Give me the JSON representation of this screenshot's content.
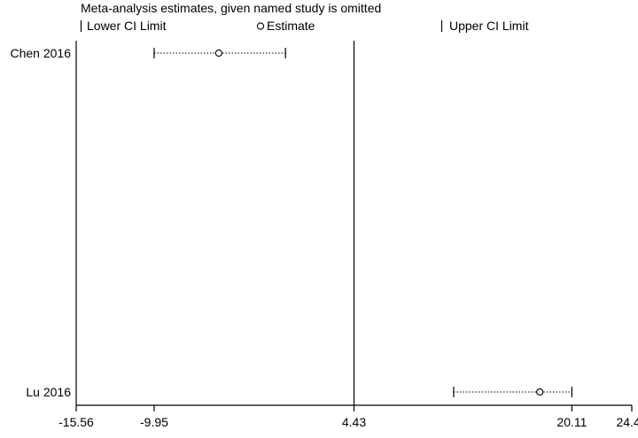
{
  "chart_data": {
    "type": "scatter",
    "title": "Meta-analysis estimates, given named study is omitted",
    "legend": {
      "placement": "top",
      "entries": [
        {
          "symbol": "lower-ci-tick",
          "label": "Lower CI Limit"
        },
        {
          "symbol": "estimate-circle",
          "label": "Estimate"
        },
        {
          "symbol": "upper-ci-tick",
          "label": "Upper CI Limit"
        }
      ]
    },
    "studies": [
      {
        "label": "Chen 2016",
        "lower": -9.95,
        "estimate": -5.3,
        "upper": -0.5
      },
      {
        "label": "Lu 2016",
        "lower": 11.6,
        "estimate": 17.8,
        "upper": 20.11
      }
    ],
    "xlim": [
      -15.56,
      24.42
    ],
    "x_ticks": [
      -15.56,
      -9.95,
      4.43,
      20.11,
      24.42
    ],
    "x_tick_labels": [
      "-15.56",
      "-9.95",
      "4.43",
      "20.11",
      "24.42"
    ],
    "reference_line": 4.43,
    "xlabel": "",
    "ylabel": "",
    "grid": false
  }
}
